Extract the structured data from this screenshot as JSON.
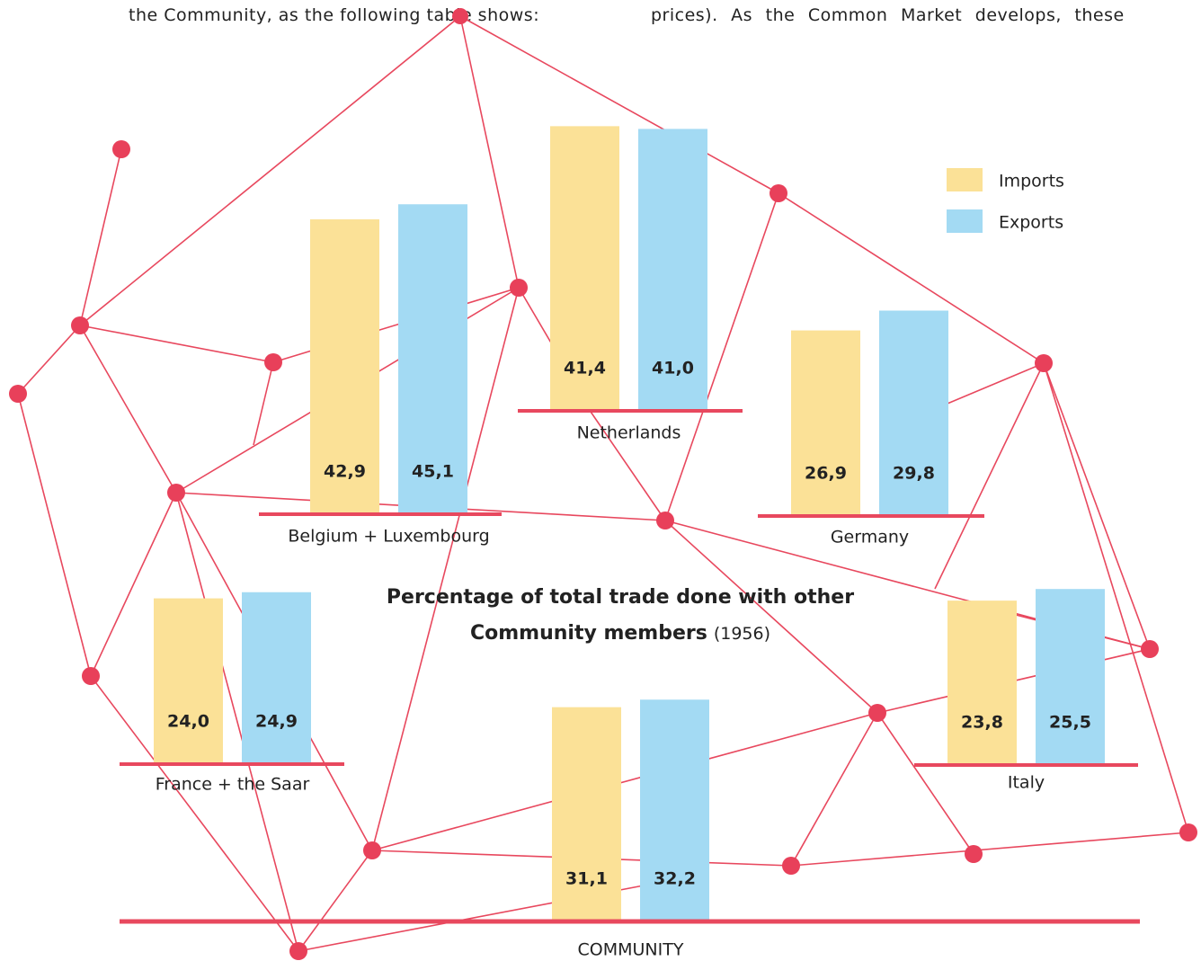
{
  "text": {
    "left_fragment": "the Community, as the following table shows:",
    "right_fragment": "prices). As the Common Market develops, these"
  },
  "chart_data": {
    "type": "bar",
    "title": "Percentage of total trade done with other Community members",
    "subtitle": "(1956)",
    "categories": [
      "Belgium + Luxembourg",
      "Netherlands",
      "Germany",
      "France + the Saar",
      "Italy",
      "COMMUNITY"
    ],
    "series": [
      {
        "name": "Imports",
        "color": "#fbe197",
        "values": [
          42.9,
          41.4,
          26.9,
          24.0,
          23.8,
          31.1
        ],
        "value_labels": [
          "42,9",
          "41,4",
          "26,9",
          "24,0",
          "23,8",
          "31,1"
        ]
      },
      {
        "name": "Exports",
        "color": "#a3daf3",
        "values": [
          45.1,
          41.0,
          29.8,
          24.9,
          25.5,
          32.2
        ],
        "value_labels": [
          "45,1",
          "41,0",
          "29,8",
          "24,9",
          "25,5",
          "32,2"
        ]
      }
    ]
  }
}
